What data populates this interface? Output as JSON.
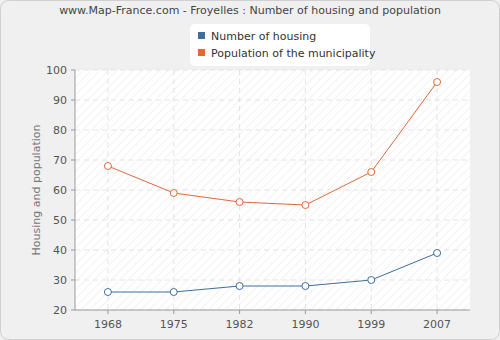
{
  "chart_data": {
    "type": "line",
    "title": "www.Map-France.com - Froyelles : Number of housing and population",
    "y_label": "Housing and population",
    "categories": [
      "1968",
      "1975",
      "1982",
      "1990",
      "1999",
      "2007"
    ],
    "series": [
      {
        "name": "Number of housing",
        "color": "#3e6ea0",
        "marker": "circle",
        "values": [
          26,
          26,
          28,
          28,
          30,
          39
        ]
      },
      {
        "name": "Population of the municipality",
        "color": "#e0683a",
        "marker": "circle",
        "values": [
          68,
          59,
          56,
          55,
          66,
          96
        ]
      }
    ],
    "ylim": [
      20,
      100
    ],
    "yticks": [
      20,
      30,
      40,
      50,
      60,
      70,
      80,
      90,
      100
    ],
    "grid": true,
    "legend": "top"
  }
}
